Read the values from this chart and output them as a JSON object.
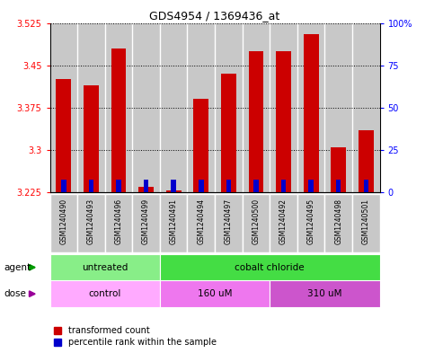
{
  "title": "GDS4954 / 1369436_at",
  "samples": [
    "GSM1240490",
    "GSM1240493",
    "GSM1240496",
    "GSM1240499",
    "GSM1240491",
    "GSM1240494",
    "GSM1240497",
    "GSM1240500",
    "GSM1240492",
    "GSM1240495",
    "GSM1240498",
    "GSM1240501"
  ],
  "red_values": [
    3.425,
    3.415,
    3.48,
    3.235,
    3.228,
    3.39,
    3.435,
    3.475,
    3.475,
    3.505,
    3.305,
    3.335
  ],
  "blue_values": [
    3.248,
    3.247,
    3.248,
    3.248,
    3.248,
    3.248,
    3.247,
    3.247,
    3.247,
    3.248,
    3.247,
    3.247
  ],
  "base_value": 3.225,
  "ylim_min": 3.225,
  "ylim_max": 3.525,
  "yticks_left": [
    3.225,
    3.3,
    3.375,
    3.45,
    3.525
  ],
  "yticks_right": [
    0,
    25,
    50,
    75,
    100
  ],
  "ytick_right_labels": [
    "0",
    "25",
    "50",
    "75",
    "100%"
  ],
  "bar_width": 0.55,
  "blue_bar_width": 0.18,
  "agent_groups": [
    {
      "label": "untreated",
      "start": 0,
      "end": 4,
      "color": "#88ee88"
    },
    {
      "label": "cobalt chloride",
      "start": 4,
      "end": 12,
      "color": "#44dd44"
    }
  ],
  "dose_groups": [
    {
      "label": "control",
      "start": 0,
      "end": 4,
      "color": "#ffaaff"
    },
    {
      "label": "160 uM",
      "start": 4,
      "end": 8,
      "color": "#ee77ee"
    },
    {
      "label": "310 uM",
      "start": 8,
      "end": 12,
      "color": "#cc55cc"
    }
  ],
  "red_color": "#cc0000",
  "blue_color": "#0000cc",
  "col_bg_color": "#c8c8c8",
  "col_sep_color": "#ffffff"
}
